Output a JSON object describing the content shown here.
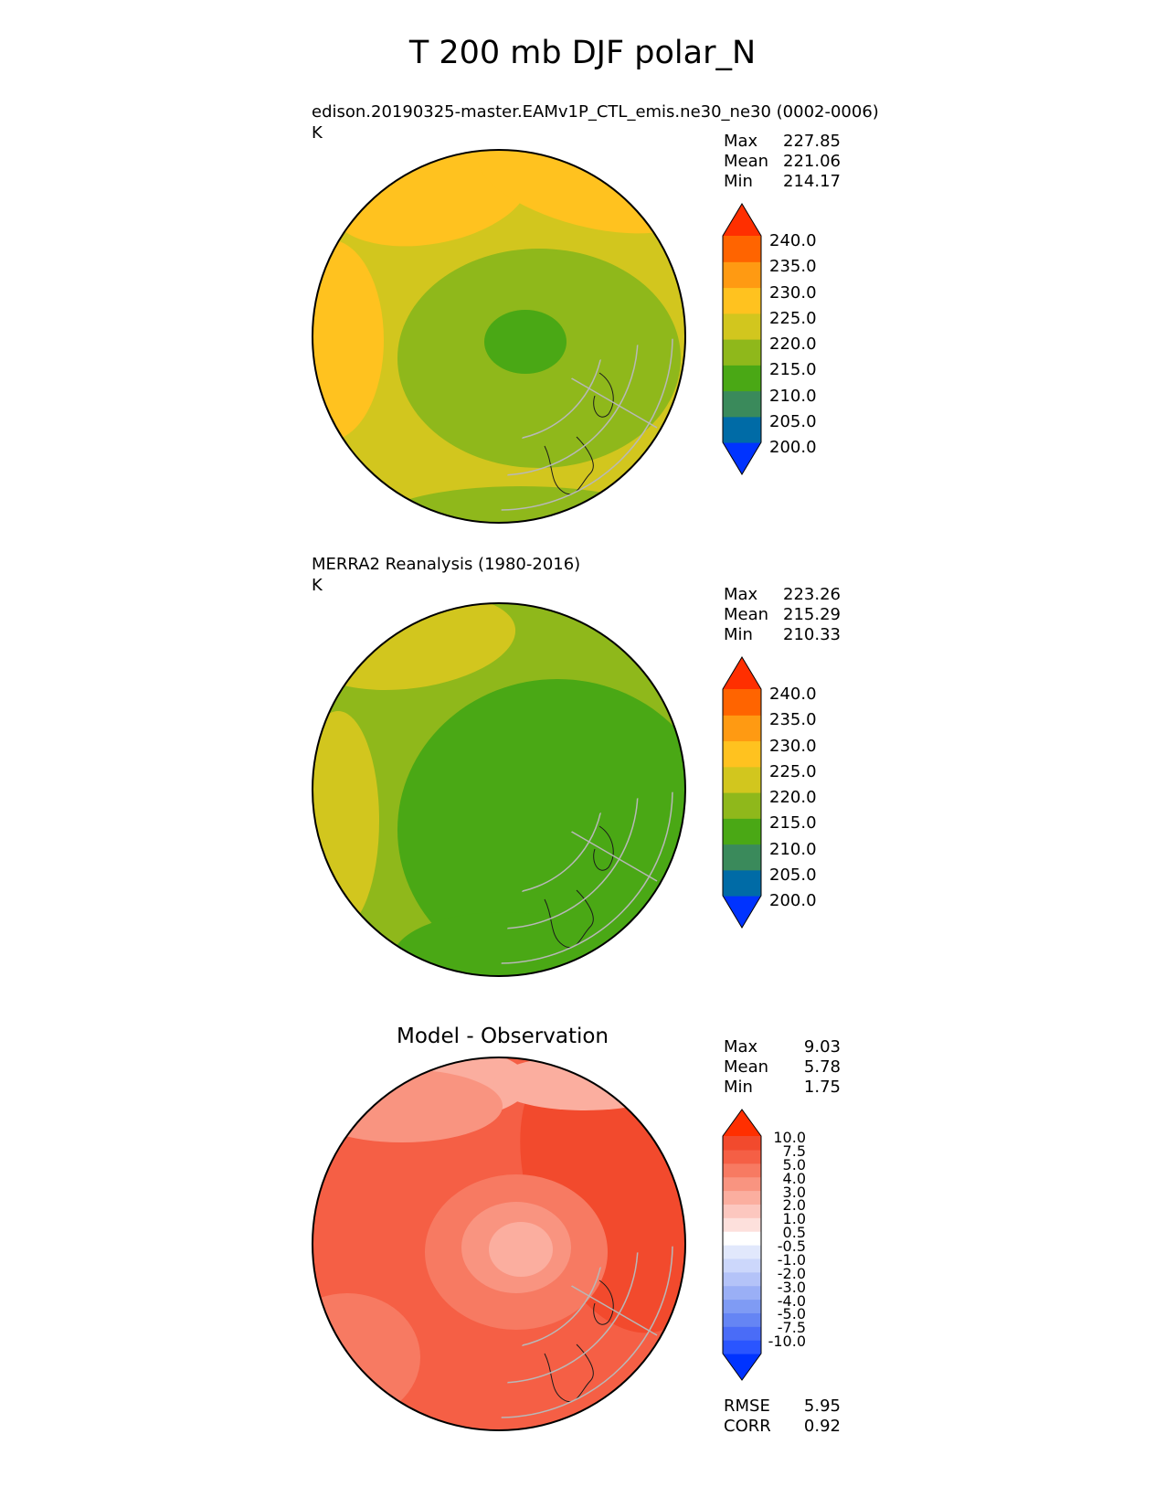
{
  "figure": {
    "title": "T 200 mb DJF polar_N"
  },
  "panels": [
    {
      "title": "edison.20190325-master.EAMv1P_CTL_emis.ne30_ne30 (0002-0006)",
      "units": "K",
      "stats": [
        {
          "label": "Max",
          "value": "227.85"
        },
        {
          "label": "Mean",
          "value": "221.06"
        },
        {
          "label": "Min",
          "value": "214.17"
        }
      ]
    },
    {
      "title": "MERRA2 Reanalysis (1980-2016)",
      "units": "K",
      "stats": [
        {
          "label": "Max",
          "value": "223.26"
        },
        {
          "label": "Mean",
          "value": "215.29"
        },
        {
          "label": "Min",
          "value": "210.33"
        }
      ]
    },
    {
      "title": "Model - Observation",
      "stats": [
        {
          "label": "Max",
          "value": "9.03"
        },
        {
          "label": "Mean",
          "value": "5.78"
        },
        {
          "label": "Min",
          "value": "1.75"
        }
      ],
      "metrics": [
        {
          "label": "RMSE",
          "value": "5.95"
        },
        {
          "label": "CORR",
          "value": "0.92"
        }
      ]
    }
  ],
  "colorbars": {
    "temperature": {
      "labels": [
        "240.0",
        "235.0",
        "230.0",
        "225.0",
        "220.0",
        "215.0",
        "210.0",
        "205.0",
        "200.0"
      ],
      "colors": [
        "#0033ff",
        "#006ba6",
        "#3a8a5b",
        "#4aa815",
        "#8fb81b",
        "#d2c61e",
        "#ffc21f",
        "#ff9a12",
        "#ff6400",
        "#ff2f00"
      ]
    },
    "difference": {
      "labels": [
        "10.0",
        "7.5",
        "5.0",
        "4.0",
        "3.0",
        "2.0",
        "1.0",
        "0.5",
        "-0.5",
        "-1.0",
        "-2.0",
        "-3.0",
        "-4.0",
        "-5.0",
        "-7.5",
        "-10.0"
      ],
      "colors": [
        "#0033ff",
        "#2a55ff",
        "#4a6cf7",
        "#6585f4",
        "#7f9bf4",
        "#9aaff6",
        "#b4c3f8",
        "#ccd7fb",
        "#e1e8fc",
        "#ffffff",
        "#fde0dc",
        "#fcc7bf",
        "#fbae9f",
        "#f99480",
        "#f77a62",
        "#f55f45",
        "#f24a2d",
        "#ff2f00"
      ]
    }
  },
  "chart_data": [
    {
      "type": "heatmap",
      "title": "edison.20190325-master.EAMv1P_CTL_emis.ne30_ne30 (0002-0006)",
      "projection": "north polar stereographic",
      "units": "K",
      "levels": [
        200,
        205,
        210,
        215,
        220,
        225,
        230,
        235,
        240
      ],
      "max": 227.85,
      "mean": 221.06,
      "min": 214.17
    },
    {
      "type": "heatmap",
      "title": "MERRA2 Reanalysis (1980-2016)",
      "projection": "north polar stereographic",
      "units": "K",
      "levels": [
        200,
        205,
        210,
        215,
        220,
        225,
        230,
        235,
        240
      ],
      "max": 223.26,
      "mean": 215.29,
      "min": 210.33
    },
    {
      "type": "heatmap",
      "title": "Model - Observation",
      "projection": "north polar stereographic",
      "levels": [
        -10,
        -7.5,
        -5,
        -4,
        -3,
        -2,
        -1,
        -0.5,
        0.5,
        1,
        2,
        3,
        4,
        5,
        7.5,
        10
      ],
      "max": 9.03,
      "mean": 5.78,
      "min": 1.75,
      "rmse": 5.95,
      "corr": 0.92
    }
  ]
}
